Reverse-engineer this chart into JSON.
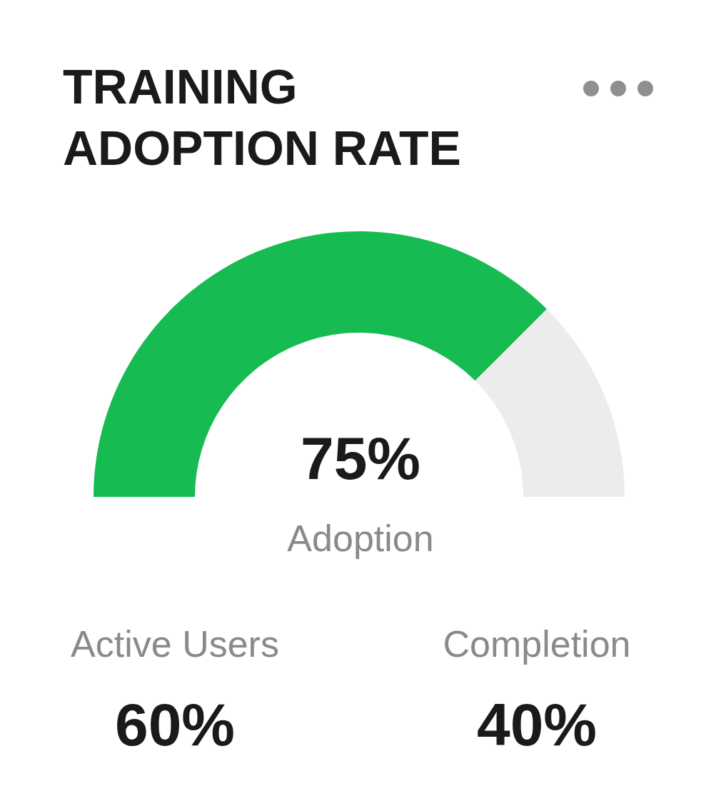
{
  "chart_data": {
    "type": "donut",
    "title": "TRAINING ADOPTION RATE",
    "categories": [
      "Adoption",
      null
    ],
    "values": [
      75,
      25
    ],
    "colors": [
      "#16bb52",
      "#ececec"
    ],
    "value_labels": [
      "75%",
      null
    ],
    "annotations": [
      "Active Users",
      "60%",
      "Completion",
      "40%"
    ]
  }
}
